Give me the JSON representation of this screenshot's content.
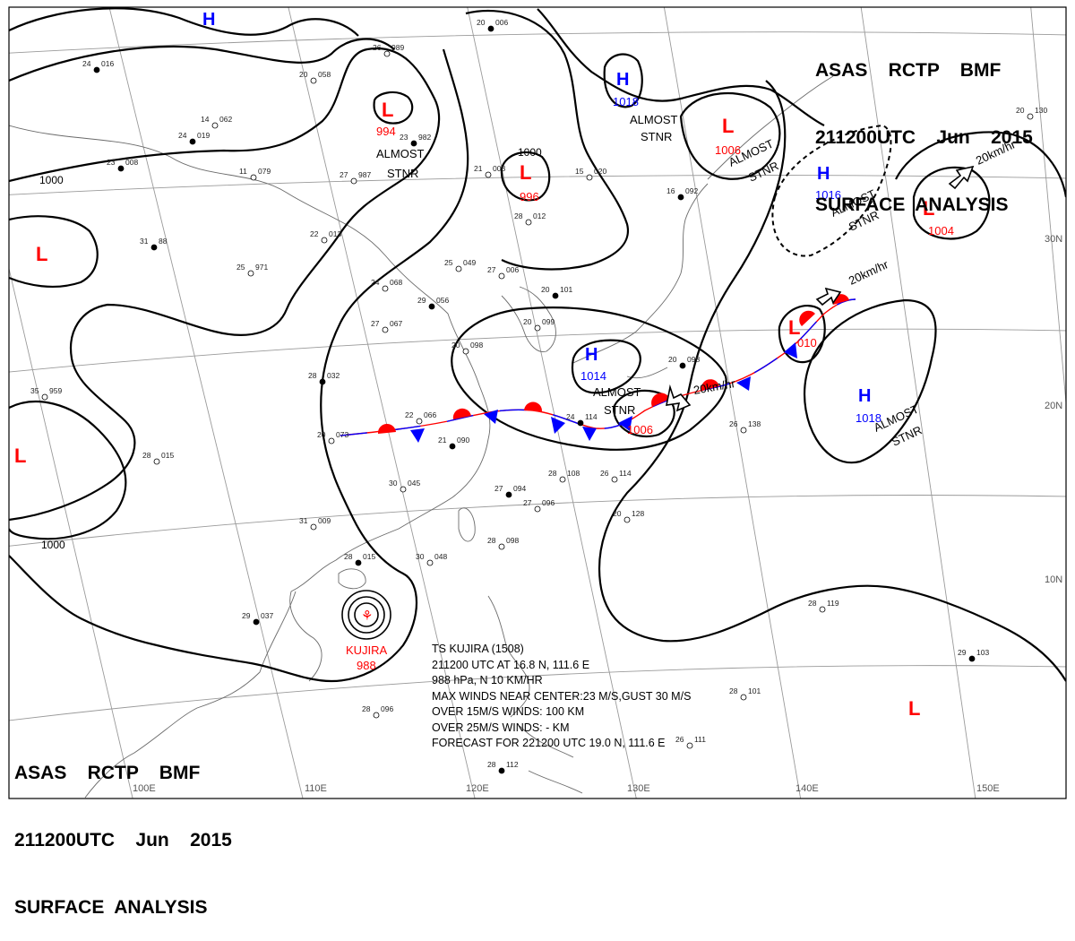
{
  "header": {
    "line1": "ASAS    RCTP    BMF",
    "line2": "211200UTC    Jun    2015",
    "line3": "SURFACE  ANALYSIS"
  },
  "colors": {
    "high": "#0000ff",
    "low": "#ff0000",
    "warm_front": "#ff0000",
    "cold_front": "#0000ff",
    "isobar": "#000000",
    "grid": "#9a9a9a",
    "coast": "#6a6a6a"
  },
  "pressure_centers": [
    {
      "id": "h-north",
      "type": "H",
      "value": ""
    },
    {
      "id": "l-994",
      "type": "L",
      "value": "994",
      "note": "ALMOST STNR"
    },
    {
      "id": "l-996",
      "type": "L",
      "value": "996"
    },
    {
      "id": "h-1018-n",
      "type": "H",
      "value": "1018"
    },
    {
      "id": "l-1006-n",
      "type": "L",
      "value": "1006",
      "note": "ALMOST STNR"
    },
    {
      "id": "h-1016",
      "type": "H",
      "value": "1016",
      "note": "ALMOST STNR"
    },
    {
      "id": "l-1004",
      "type": "L",
      "value": "1004",
      "motion": "20km/hr"
    },
    {
      "id": "l-west",
      "type": "L",
      "value": ""
    },
    {
      "id": "l-1010",
      "type": "L",
      "value": "010",
      "motion": "20km/hr"
    },
    {
      "id": "h-1014",
      "type": "H",
      "value": "1014",
      "note": "ALMOST STNR"
    },
    {
      "id": "l-1006-s",
      "type": "L",
      "value": "1006",
      "motion": "20km/hr"
    },
    {
      "id": "h-1018-s",
      "type": "H",
      "value": "1018",
      "note": "ALMOST STNR"
    },
    {
      "id": "l-sw",
      "type": "L",
      "value": ""
    },
    {
      "id": "l-se",
      "type": "L",
      "value": ""
    }
  ],
  "isobar_labels": [
    "1000",
    "1000",
    "1000"
  ],
  "typhoon": {
    "name": "KUJIRA",
    "pressure": "988",
    "info": [
      "TS  KUJIRA  (1508)",
      "211200 UTC   AT 16.8 N, 111.6 E",
      "988 hPa, N  10 KM/HR",
      "MAX WINDS NEAR CENTER:23 M/S,GUST 30 M/S",
      "OVER 15M/S WINDS: 100 KM",
      "OVER 25M/S WINDS:  - KM",
      "FORECAST FOR 221200 UTC 19.0 N, 111.6 E"
    ]
  },
  "longitude_labels": [
    "100E",
    "110E",
    "120E",
    "130E",
    "140E",
    "150E"
  ],
  "latitude_labels": [
    "30N",
    "20N",
    "10N"
  ],
  "station_plots": [
    {
      "t": "24",
      "p": "019"
    },
    {
      "t": "20",
      "p": "058"
    },
    {
      "t": "26",
      "p": "989"
    },
    {
      "t": "23",
      "p": "982"
    },
    {
      "t": "21",
      "p": "003"
    },
    {
      "t": "28",
      "p": "012"
    },
    {
      "t": "20",
      "p": "006"
    },
    {
      "t": "15",
      "p": "020"
    },
    {
      "t": "22",
      "p": "013"
    },
    {
      "t": "23",
      "p": "008"
    },
    {
      "t": "25",
      "p": "049"
    },
    {
      "t": "27",
      "p": "006"
    },
    {
      "t": "29",
      "p": "056"
    },
    {
      "t": "24",
      "p": "068"
    },
    {
      "t": "27",
      "p": "067"
    },
    {
      "t": "20",
      "p": "101"
    },
    {
      "t": "20",
      "p": "099"
    },
    {
      "t": "20",
      "p": "098"
    },
    {
      "t": "28",
      "p": "032"
    },
    {
      "t": "22",
      "p": "066"
    },
    {
      "t": "20",
      "p": "073"
    },
    {
      "t": "21",
      "p": "090"
    },
    {
      "t": "28",
      "p": "015"
    },
    {
      "t": "30",
      "p": "045"
    },
    {
      "t": "27",
      "p": "094"
    },
    {
      "t": "27",
      "p": "096"
    },
    {
      "t": "31",
      "p": "009"
    },
    {
      "t": "28",
      "p": "015"
    },
    {
      "t": "30",
      "p": "048"
    },
    {
      "t": "28",
      "p": "098"
    },
    {
      "t": "29",
      "p": "037"
    },
    {
      "t": "28",
      "p": "108"
    },
    {
      "t": "26",
      "p": "114"
    },
    {
      "t": "24",
      "p": "114"
    },
    {
      "t": "20",
      "p": "128"
    },
    {
      "t": "28",
      "p": "119"
    },
    {
      "t": "29",
      "p": "103"
    },
    {
      "t": "28",
      "p": "101"
    },
    {
      "t": "26",
      "p": "111"
    },
    {
      "t": "28",
      "p": "112"
    },
    {
      "t": "28",
      "p": "096"
    },
    {
      "t": "14",
      "p": "062"
    },
    {
      "t": "16",
      "p": "092"
    },
    {
      "t": "11",
      "p": "079"
    },
    {
      "t": "27",
      "p": "987"
    },
    {
      "t": "20",
      "p": "098"
    },
    {
      "t": "26",
      "p": "138"
    },
    {
      "t": "20",
      "p": "130"
    },
    {
      "t": "31",
      "p": "88"
    },
    {
      "t": "25",
      "p": "971"
    },
    {
      "t": "35",
      "p": "959"
    },
    {
      "t": "24",
      "p": "016"
    }
  ]
}
